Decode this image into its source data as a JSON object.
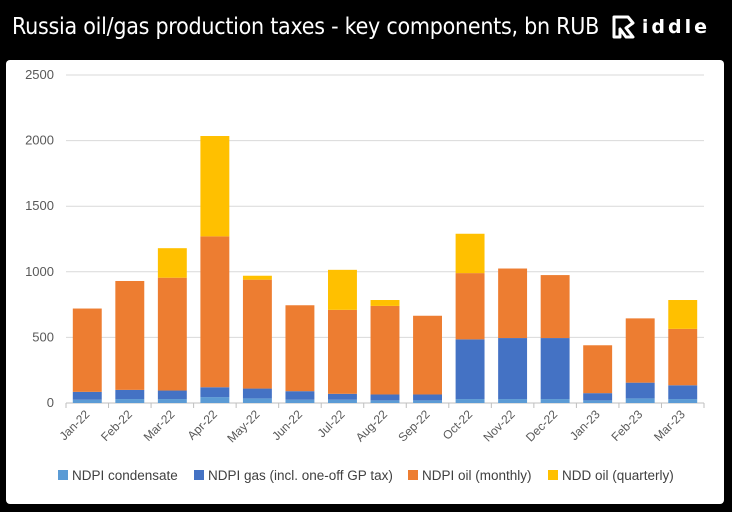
{
  "header": {
    "title": "Russia oil/gas production taxes - key components, bn RUB",
    "brand": "iddle"
  },
  "chart_data": {
    "type": "bar",
    "stacked": true,
    "categories": [
      "Jan-22",
      "Feb-22",
      "Mar-22",
      "Apr-22",
      "May-22",
      "Jun-22",
      "Jul-22",
      "Aug-22",
      "Sep-22",
      "Oct-22",
      "Nov-22",
      "Dec-22",
      "Jan-23",
      "Feb-23",
      "Mar-23"
    ],
    "ylim": [
      0,
      2500
    ],
    "yticks": [
      0,
      500,
      1000,
      1500,
      2000,
      2500
    ],
    "grid": true,
    "legend_position": "bottom",
    "series": [
      {
        "name": "NDPI condensate",
        "color": "#5B9BD5",
        "values": [
          25,
          30,
          30,
          45,
          35,
          25,
          25,
          20,
          20,
          30,
          30,
          30,
          20,
          35,
          30
        ]
      },
      {
        "name": "NDPI gas (incl. one-off GP tax)",
        "color": "#4472C4",
        "values": [
          60,
          70,
          65,
          75,
          75,
          65,
          45,
          45,
          45,
          455,
          465,
          465,
          55,
          120,
          105
        ]
      },
      {
        "name": "NDPI oil (monthly)",
        "color": "#ED7D31",
        "values": [
          635,
          830,
          860,
          1150,
          830,
          655,
          640,
          675,
          600,
          505,
          530,
          480,
          365,
          490,
          430
        ]
      },
      {
        "name": "NDD oil (quarterly)",
        "color": "#FFC000",
        "values": [
          0,
          0,
          225,
          765,
          30,
          0,
          305,
          45,
          0,
          300,
          0,
          0,
          0,
          0,
          220
        ]
      }
    ]
  }
}
